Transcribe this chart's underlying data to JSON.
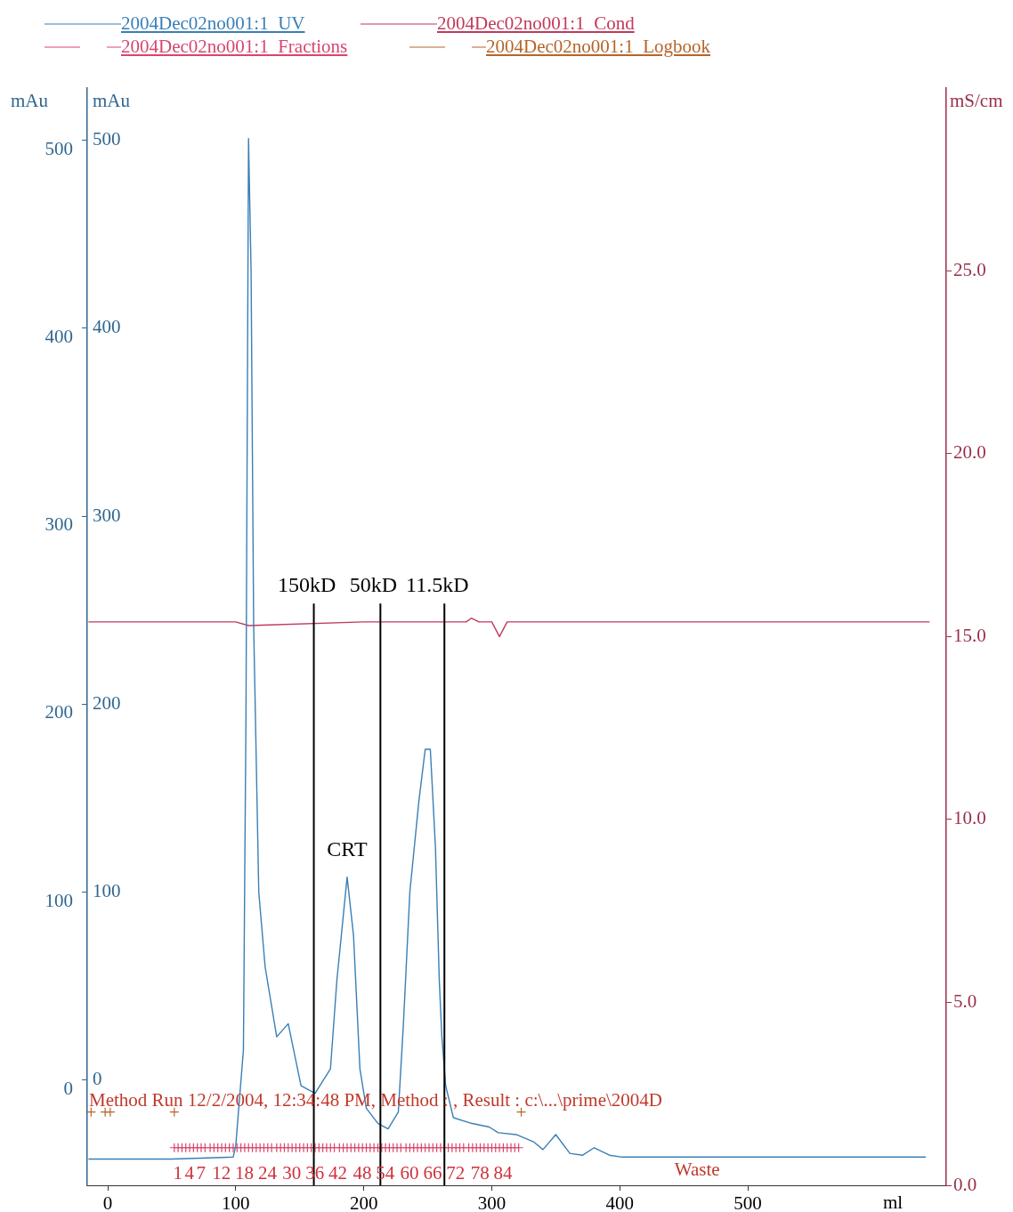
{
  "chart_data": {
    "type": "line",
    "xlabel": "ml",
    "ylabel": "mAu",
    "y3label": "mAu",
    "y2label": "mS/cm",
    "xlim": [
      -16,
      655
    ],
    "xticks": [
      0,
      100,
      200,
      300,
      400,
      500
    ],
    "ylim": [
      -56,
      528
    ],
    "yticks": [
      0,
      100,
      200,
      300,
      400,
      500
    ],
    "y3lim": [
      -56,
      528
    ],
    "y3ticks": [
      0,
      100,
      200,
      300,
      400,
      500
    ],
    "y2lim": [
      0,
      30
    ],
    "y2ticks": [
      {
        "value": 0,
        "label": "0.0"
      },
      {
        "value": 5,
        "label": "5.0"
      },
      {
        "value": 10,
        "label": "10.0"
      },
      {
        "value": 15,
        "label": "15.0"
      },
      {
        "value": 20,
        "label": "20.0"
      },
      {
        "value": 25,
        "label": "25.0"
      }
    ],
    "grid": false,
    "legend": "top",
    "marker": "none",
    "series": [
      {
        "name": "2004Dec02no001:1_UV",
        "color": "#3a7fb5",
        "x": [
          -15,
          50,
          98,
          100,
          106,
          108,
          110,
          112,
          114,
          118,
          123,
          132,
          141,
          151,
          162,
          174,
          179,
          187,
          192,
          197,
          202,
          211,
          219,
          227,
          231,
          236,
          243,
          248,
          252,
          256,
          259,
          261,
          264,
          270,
          284,
          298,
          305,
          319,
          333,
          340,
          350,
          361,
          371,
          380,
          392,
          402,
          639
        ],
        "values": [
          -42,
          -42,
          -41,
          -35,
          16,
          195,
          501,
          430,
          242,
          100,
          60,
          23,
          30,
          -3,
          -7,
          6,
          53,
          108,
          77,
          6,
          -15,
          -23,
          -26,
          -17,
          30,
          100,
          148,
          176,
          176,
          124,
          53,
          23,
          -3,
          -20,
          -23,
          -25,
          -28,
          -29,
          -33,
          -37,
          -29,
          -39,
          -40,
          -36,
          -40,
          -41,
          -41
        ]
      },
      {
        "name": "2004Dec02no001:1_Cond",
        "color": "#c0395a",
        "axis": "y2",
        "x": [
          -15,
          100,
          110,
          200,
          280,
          284,
          290,
          300,
          306,
          312,
          642
        ],
        "values": [
          15.4,
          15.4,
          15.3,
          15.4,
          15.4,
          15.5,
          15.4,
          15.4,
          15.0,
          15.4,
          15.4
        ]
      },
      {
        "name": "2004Dec02no001:1_Fractions",
        "type": "scatter",
        "marker": "cross",
        "line_style": "dashed",
        "color": "#d8456e",
        "x": [
          52,
          55,
          58,
          61,
          64,
          67,
          70,
          73,
          76,
          80,
          83,
          86,
          89,
          92,
          95,
          98,
          101,
          104,
          107,
          110,
          113,
          116,
          119,
          122,
          125,
          128,
          132,
          135,
          138,
          141,
          144,
          147,
          150,
          153,
          156,
          159,
          162,
          165,
          168,
          171,
          174,
          177,
          181,
          184,
          187,
          190,
          193,
          196,
          199,
          202,
          205,
          208,
          211,
          214,
          217,
          220,
          223,
          226,
          229,
          233,
          236,
          239,
          242,
          245,
          248,
          251,
          254,
          257,
          260,
          263,
          266,
          269,
          272,
          275,
          278,
          282,
          285,
          288,
          291,
          294,
          297,
          300,
          303,
          306,
          309,
          312,
          315,
          318,
          321
        ],
        "values": [
          -36,
          -36,
          -36,
          -36,
          -36,
          -36,
          -36,
          -36,
          -36,
          -36,
          -36,
          -36,
          -36,
          -36,
          -36,
          -36,
          -36,
          -36,
          -36,
          -36,
          -36,
          -36,
          -36,
          -36,
          -36,
          -36,
          -36,
          -36,
          -36,
          -36,
          -36,
          -36,
          -36,
          -36,
          -36,
          -36,
          -36,
          -36,
          -36,
          -36,
          -36,
          -36,
          -36,
          -36,
          -36,
          -36,
          -36,
          -36,
          -36,
          -36,
          -36,
          -36,
          -36,
          -36,
          -36,
          -36,
          -36,
          -36,
          -36,
          -36,
          -36,
          -36,
          -36,
          -36,
          -36,
          -36,
          -36,
          -36,
          -36,
          -36,
          -36,
          -36,
          -36,
          -36,
          -36,
          -36,
          -36,
          -36,
          -36,
          -36,
          -36,
          -36,
          -36,
          -36,
          -36,
          -36,
          -36,
          -36,
          -36
        ]
      },
      {
        "name": "2004Dec02no001:1_Logbook",
        "type": "scatter",
        "marker": "cross",
        "line_style": "dashed",
        "color": "#b5652a",
        "x": [
          -13,
          -2,
          2,
          52,
          323
        ],
        "values": [
          -17,
          -17,
          -17,
          -17,
          -17
        ]
      }
    ],
    "ref_lines": [
      {
        "axis": "x",
        "value": 161,
        "label": "150kD"
      },
      {
        "axis": "x",
        "value": 213,
        "label": "50kD"
      },
      {
        "axis": "x",
        "value": 263,
        "label": "11.5kD"
      }
    ],
    "annotations": [
      "Method Run 12/2/2004, 12:34:48 PM, Method : , Result : c:\\...\\prime\\2004D",
      {
        "text": "CRT",
        "x": 187,
        "y": 108
      },
      {
        "text": "1",
        "x": 52,
        "y": -36
      },
      {
        "text": "4",
        "x": 61,
        "y": -36
      },
      {
        "text": "7",
        "x": 70,
        "y": -36
      },
      {
        "text": "12",
        "x": 86,
        "y": -36
      },
      {
        "text": "18",
        "x": 104,
        "y": -36
      },
      {
        "text": "24",
        "x": 122,
        "y": -36
      },
      {
        "text": "30",
        "x": 141,
        "y": -36
      },
      {
        "text": "36",
        "x": 159,
        "y": -36
      },
      {
        "text": "42",
        "x": 177,
        "y": -36
      },
      {
        "text": "48",
        "x": 196,
        "y": -36
      },
      {
        "text": "54",
        "x": 214,
        "y": -36
      },
      {
        "text": "60",
        "x": 233,
        "y": -36
      },
      {
        "text": "66",
        "x": 251,
        "y": -36
      },
      {
        "text": "72",
        "x": 269,
        "y": -36
      },
      {
        "text": "78",
        "x": 288,
        "y": -36
      },
      {
        "text": "84",
        "x": 306,
        "y": -36
      },
      "Waste"
    ]
  }
}
